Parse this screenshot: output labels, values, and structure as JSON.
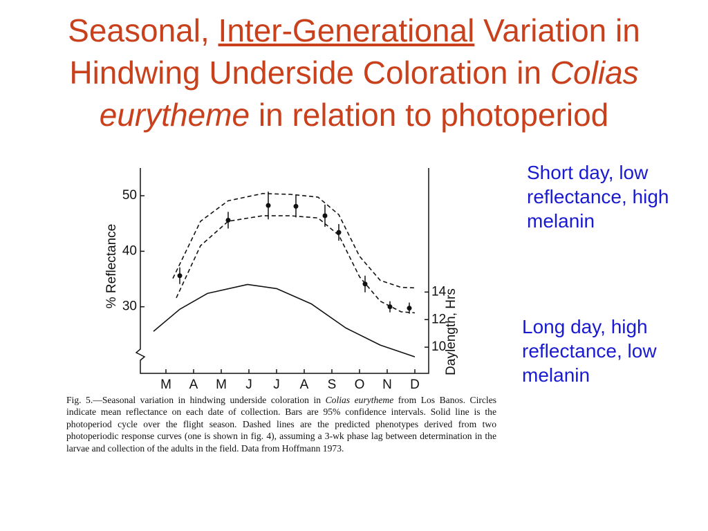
{
  "title": [
    "Seasonal, ",
    "Inter-Generational",
    " Variation in Hindwing Underside Coloration in ",
    "Colias eurytheme",
    " in relation to photoperiod"
  ],
  "notes": [
    "Short day, low reflectance, high melanin",
    "Long day, high reflectance, low  melanin"
  ],
  "caption": [
    "Fig. 5.—Seasonal variation in hindwing underside coloration in ",
    "Colias eurytheme",
    " from Los Banos. Circles indicate mean reflectance on each date of collection. Bars are 95% confidence intervals. Solid line is the photoperiod cycle over the flight season. Dashed lines are the predicted phenotypes derived from two photoperiodic response curves (one is shown in fig. 4), assuming a 3-wk phase lag between determination in the larvae and collection of the adults in the field. Data from Hoffmann 1973."
  ],
  "chart_data": {
    "type": "line",
    "ylabel": "% Reflectance",
    "y2label": "Daylength, Hrs",
    "xlim": [
      -0.925,
      9.5
    ],
    "xticks": [
      {
        "value": 0,
        "label": "M"
      },
      {
        "value": 1,
        "label": "A"
      },
      {
        "value": 2,
        "label": "M"
      },
      {
        "value": 3,
        "label": "J"
      },
      {
        "value": 4,
        "label": "J"
      },
      {
        "value": 5,
        "label": "A"
      },
      {
        "value": 6,
        "label": "S"
      },
      {
        "value": 7,
        "label": "O"
      },
      {
        "value": 8,
        "label": "N"
      },
      {
        "value": 9,
        "label": "D"
      }
    ],
    "ylim": [
      18,
      55
    ],
    "yticks": [
      30,
      40,
      50
    ],
    "y2lim": [
      8.1,
      23
    ],
    "y2ticks": [
      10,
      12,
      14
    ],
    "series": [
      {
        "mode": "markers",
        "color": "#111111",
        "x": [
          0.5,
          2.25,
          3.7,
          4.7,
          5.75,
          6.25,
          7.2,
          8.1,
          8.8
        ],
        "values": [
          35.6,
          45.6,
          48.25,
          48.1,
          46.4,
          43.4,
          34.1,
          30,
          29.75
        ],
        "errors": [
          1.5,
          1.5,
          2.5,
          2,
          2,
          1.5,
          1.5,
          1,
          1
        ]
      },
      {
        "mode": "dashed",
        "color": "#111111",
        "x": [
          0.25,
          1.25,
          2.25,
          3.5,
          4.5,
          5.5,
          6.25,
          7,
          7.75,
          8.5,
          9
        ],
        "values": [
          35.1,
          45.4,
          49.1,
          50.4,
          50.25,
          49.75,
          46.6,
          39.1,
          34.75,
          33.5,
          33.4
        ]
      },
      {
        "mode": "dashed",
        "color": "#111111",
        "x": [
          0.375,
          1.25,
          2.25,
          3.5,
          4.5,
          5.5,
          6.25,
          7,
          7.75,
          8.5,
          9
        ],
        "values": [
          31.6,
          41,
          45.4,
          46.4,
          46.4,
          46,
          42.9,
          35.4,
          31,
          29.1,
          28.9
        ]
      },
      {
        "mode": "solid",
        "axis": "y2",
        "color": "#111111",
        "x": [
          -0.45,
          0.5,
          1.5,
          2.95,
          4,
          5.25,
          6.5,
          7.75,
          9
        ],
        "values": [
          11.15,
          12.75,
          13.9,
          14.55,
          14.25,
          13.15,
          11.4,
          10.15,
          9.3
        ]
      }
    ]
  }
}
